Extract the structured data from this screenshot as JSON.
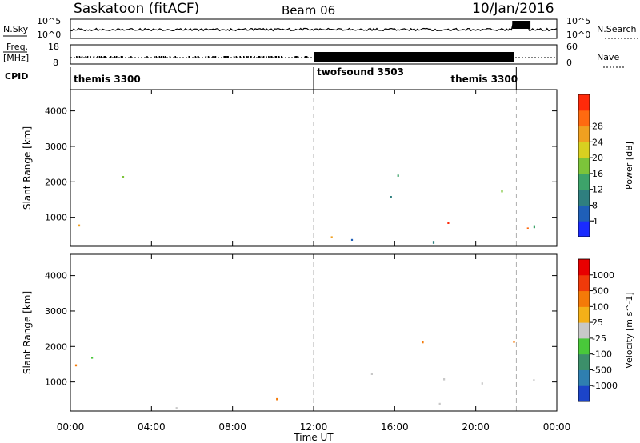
{
  "header": {
    "station": "Saskatoon (fitACF)",
    "beam": "Beam 06",
    "date": "10/Jan/2016"
  },
  "noise_panel": {
    "left_label": "N.Sky",
    "right_label": "N.Search",
    "left_ticks": [
      "10^5",
      "10^0"
    ],
    "right_ticks": [
      "10^5",
      "10^0"
    ]
  },
  "freq_panel": {
    "left_label_line1": "Freq.",
    "left_label_line2": "[MHz]",
    "right_label": "Nave",
    "left_ticks": [
      "18",
      "8"
    ],
    "right_ticks": [
      "60",
      "0"
    ]
  },
  "cpid_panel": {
    "label": "CPID",
    "segments": [
      {
        "name": "themis 3300",
        "start_hour": 0
      },
      {
        "name": "twofsound 3503",
        "start_hour": 12
      },
      {
        "name": "themis 3300",
        "start_hour": 22
      }
    ]
  },
  "chart_data": [
    {
      "type": "heatmap",
      "parameter": "Power",
      "colorbar_label": "Power [dB]",
      "colorbar_ticks": [
        4,
        8,
        12,
        16,
        20,
        24,
        28
      ],
      "colorbar_colors": [
        "#1a2bff",
        "#1f5fb8",
        "#2f7f7f",
        "#3da36a",
        "#7cc43a",
        "#d8d020",
        "#f0a020",
        "#ff6a10",
        "#ff2a0a"
      ],
      "ylabel": "Slant Range [km]",
      "yticks": [
        1000,
        2000,
        3000,
        4000
      ],
      "ylim": [
        180,
        4600
      ],
      "xlim_hours": [
        0,
        24
      ]
    },
    {
      "type": "heatmap",
      "parameter": "Velocity",
      "colorbar_label": "Velocity [m s^-1]",
      "colorbar_ticks": [
        "1000",
        "500",
        "100",
        "25",
        "-25",
        "-100",
        "-500",
        "-1000"
      ],
      "colorbar_colors": [
        "#1c44c8",
        "#2f7fb0",
        "#3c8f6a",
        "#49c83a",
        "#c8c8c8",
        "#f4b018",
        "#f47a08",
        "#f03a0a",
        "#e80000"
      ],
      "ylabel": "Slant Range [km]",
      "yticks": [
        1000,
        2000,
        3000,
        4000
      ],
      "ylim": [
        180,
        4600
      ],
      "xlim_hours": [
        0,
        24
      ]
    }
  ],
  "x_axis": {
    "label": "Time UT",
    "ticks": [
      "00:00",
      "04:00",
      "08:00",
      "12:00",
      "16:00",
      "20:00",
      "00:00"
    ]
  }
}
